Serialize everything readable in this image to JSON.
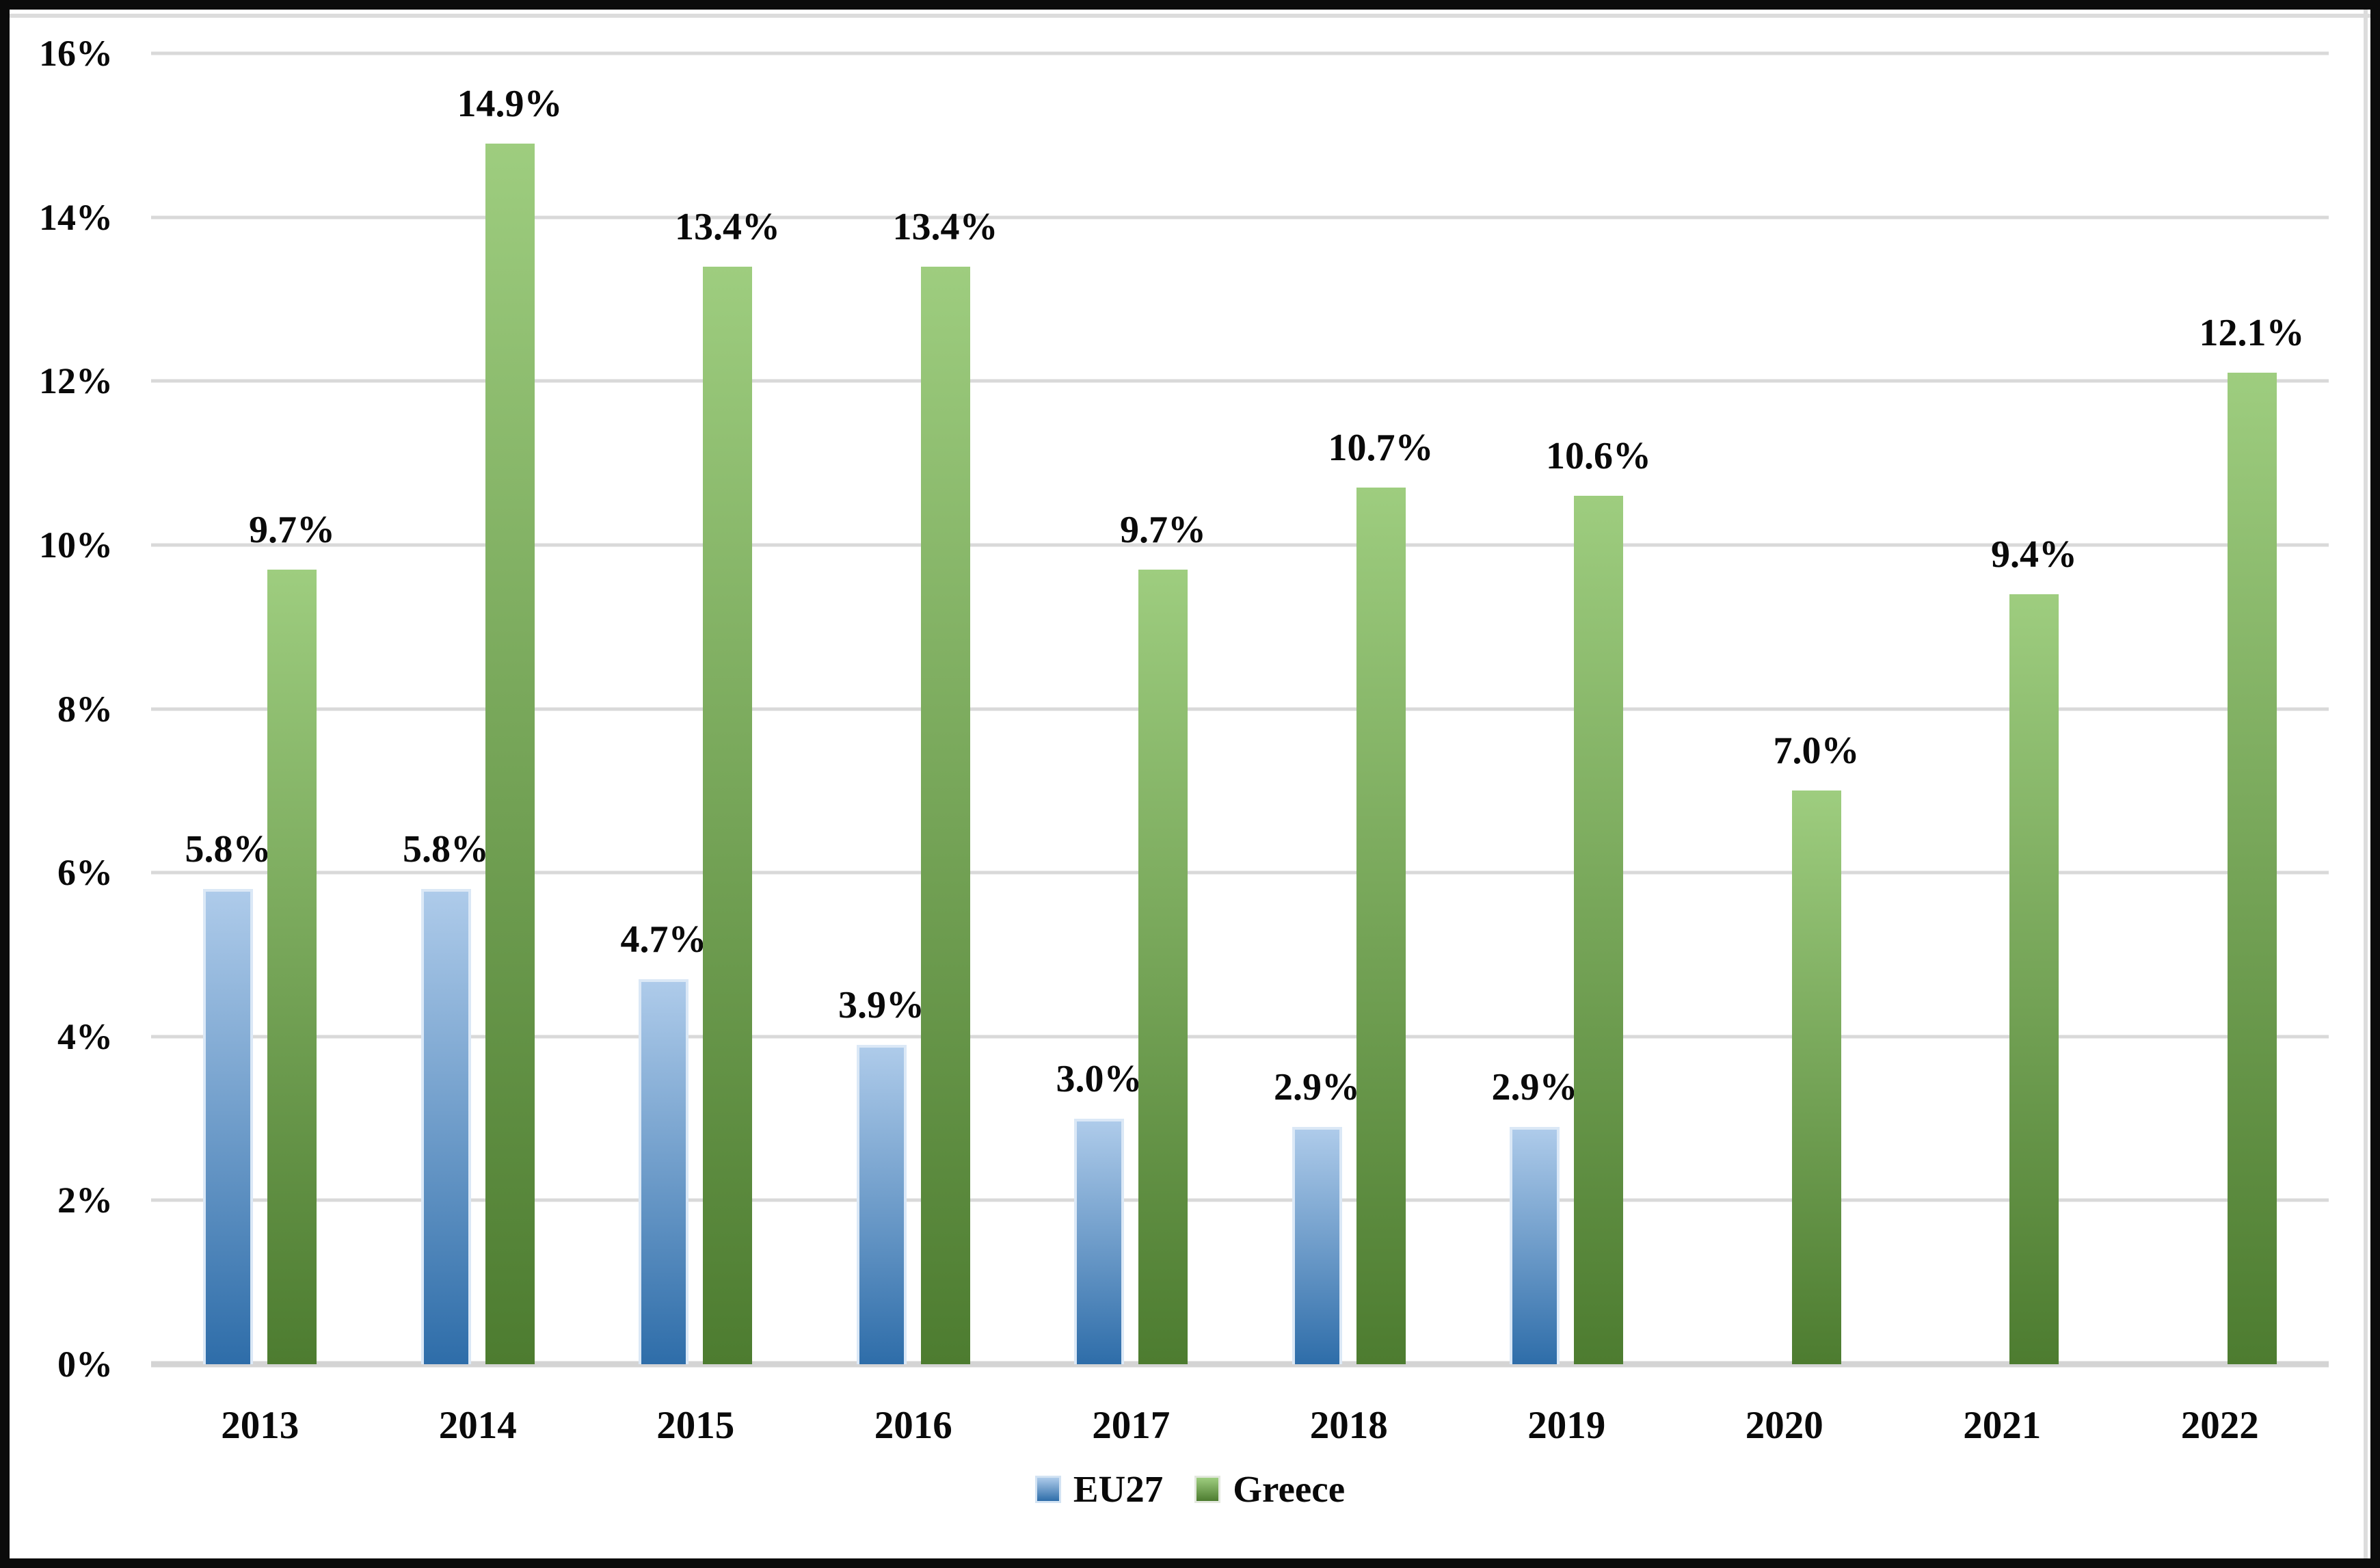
{
  "chart_data": {
    "type": "bar",
    "title": "",
    "xlabel": "",
    "ylabel": "",
    "categories": [
      "2013",
      "2014",
      "2015",
      "2016",
      "2017",
      "2018",
      "2019",
      "2020",
      "2021",
      "2022"
    ],
    "series": [
      {
        "name": "EU27",
        "color_top": "#aecbea",
        "color_bottom": "#2e6da9",
        "border_color": "#dbe8f6",
        "values": [
          5.8,
          5.8,
          4.7,
          3.9,
          3.0,
          2.9,
          2.9,
          null,
          null,
          null
        ],
        "labels": [
          "5.8%",
          "5.8%",
          "4.7%",
          "3.9%",
          "3.0%",
          "2.9%",
          "2.9%",
          "",
          "",
          ""
        ]
      },
      {
        "name": "Greece",
        "color_top": "#9ecd7f",
        "color_bottom": "#4d7c30",
        "border_color": "",
        "values": [
          9.7,
          14.9,
          13.4,
          13.4,
          9.7,
          10.7,
          10.6,
          7.0,
          9.4,
          12.1
        ],
        "labels": [
          "9.7%",
          "14.9%",
          "13.4%",
          "13.4%",
          "9.7%",
          "10.7%",
          "10.6%",
          "7.0%",
          "9.4%",
          "12.1%"
        ]
      }
    ],
    "y_axis": {
      "min": 0,
      "max": 16,
      "step": 2,
      "tick_labels": [
        "0%",
        "2%",
        "4%",
        "6%",
        "8%",
        "10%",
        "12%",
        "14%",
        "16%"
      ]
    },
    "legend": {
      "position": "bottom",
      "entries": [
        "EU27",
        "Greece"
      ]
    },
    "grid": true,
    "gridline_color": "#d9d9d9",
    "axis_line_color": "#d4d4d4",
    "frame_color": "#0b0b0b",
    "background": "#ffffff",
    "text_color": "#0a0a0a"
  }
}
